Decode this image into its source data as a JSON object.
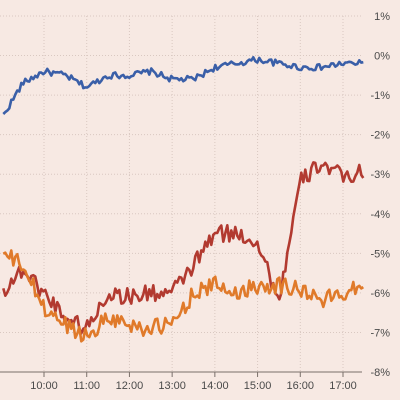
{
  "chart_data": {
    "type": "line",
    "title": "",
    "xlabel": "",
    "ylabel": "",
    "grid": true,
    "x_ticks": [
      "10:00",
      "11:00",
      "12:00",
      "13:00",
      "14:00",
      "15:00",
      "16:00",
      "17:00"
    ],
    "y_ticks": [
      "1%",
      "0%",
      "-1%",
      "-2%",
      "-3%",
      "-4%",
      "-5%",
      "-6%",
      "-7%",
      "-8%"
    ],
    "ylim": [
      -8,
      1
    ],
    "x_range": [
      "09:00",
      "17:30"
    ],
    "series": [
      {
        "color": "#3a5fa8",
        "x": [
          "09:00",
          "09:30",
          "10:00",
          "10:30",
          "11:00",
          "11:30",
          "12:00",
          "12:30",
          "13:00",
          "13:30",
          "14:00",
          "14:30",
          "15:00",
          "15:30",
          "16:00",
          "16:30",
          "17:00",
          "17:30"
        ],
        "values": [
          -1.6,
          -0.7,
          -0.4,
          -0.5,
          -0.8,
          -0.5,
          -0.5,
          -0.4,
          -0.6,
          -0.6,
          -0.3,
          -0.2,
          -0.1,
          -0.2,
          -0.3,
          -0.3,
          -0.2,
          -0.2
        ]
      },
      {
        "color": "#b23a30",
        "x": [
          "09:00",
          "09:30",
          "10:00",
          "10:30",
          "11:00",
          "11:30",
          "12:00",
          "12:30",
          "13:00",
          "13:30",
          "14:00",
          "14:30",
          "15:00",
          "15:30",
          "16:00",
          "16:30",
          "17:00",
          "17:30"
        ],
        "values": [
          -6.0,
          -5.4,
          -6.0,
          -6.6,
          -6.9,
          -6.0,
          -6.1,
          -6.0,
          -6.0,
          -5.3,
          -4.5,
          -4.5,
          -4.7,
          -6.2,
          -3.2,
          -2.7,
          -3.1,
          -2.9
        ]
      },
      {
        "color": "#e07a2a",
        "x": [
          "09:00",
          "09:30",
          "10:00",
          "10:30",
          "11:00",
          "11:30",
          "12:00",
          "12:30",
          "13:00",
          "13:30",
          "14:00",
          "14:30",
          "15:00",
          "15:30",
          "16:00",
          "16:30",
          "17:00",
          "17:30"
        ],
        "values": [
          -5.0,
          -5.3,
          -6.4,
          -6.8,
          -7.1,
          -6.6,
          -6.8,
          -6.9,
          -6.8,
          -6.0,
          -5.8,
          -6.0,
          -5.8,
          -5.8,
          -5.9,
          -6.2,
          -6.0,
          -5.7
        ]
      }
    ]
  }
}
